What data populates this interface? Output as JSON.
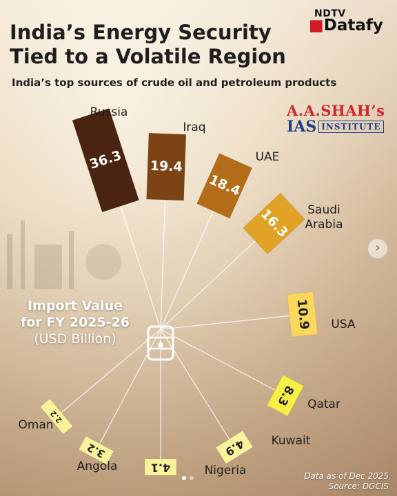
{
  "header": {
    "title_line1": "India’s Energy Security",
    "title_line2": "Tied to a Volatile Region",
    "subtitle": "India’s top sources of crude oil and petroleum products"
  },
  "brand": {
    "top": "NDTV",
    "main": "Datafy"
  },
  "badge": {
    "line1": "A.A.SHAH’s",
    "ias": "IAS",
    "institute": "INSTITUTE"
  },
  "center": {
    "line1": "Import Value",
    "line2": "for FY 2025-26",
    "line3": "(USD Billion)"
  },
  "footnote": {
    "line1": "Data as of Dec 2025",
    "line2": "Source: DGCIS"
  },
  "nav": {
    "next_icon": "chevron-right-icon",
    "arrow_glyph": "›"
  },
  "colors": {
    "russia": "#4a2410",
    "iraq": "#7c4414",
    "uae": "#b36d18",
    "saudi": "#e0a325",
    "usa": "#fbd85c",
    "qatar": "#f7ef45",
    "small": "#fbf39b"
  },
  "chart_data": {
    "type": "bar",
    "title": "India’s Energy Security Tied to a Volatile Region",
    "subtitle": "India’s top sources of crude oil and petroleum products",
    "ylabel": "Import Value for FY 2025-26 (USD Billion)",
    "categories": [
      "Russia",
      "Iraq",
      "UAE",
      "Saudi Arabia",
      "USA",
      "Qatar",
      "Kuwait",
      "Nigeria",
      "Angola",
      "Oman"
    ],
    "values": [
      36.3,
      19.4,
      18.4,
      16.3,
      10.9,
      8.3,
      4.9,
      4.1,
      3.2,
      2.2
    ],
    "value_labels": [
      "36.3",
      "19.4",
      "18.4",
      "16.3",
      "10.9",
      "8.3",
      "4.9",
      "4.1",
      "3.2",
      "2.2"
    ],
    "layout": "radial"
  }
}
